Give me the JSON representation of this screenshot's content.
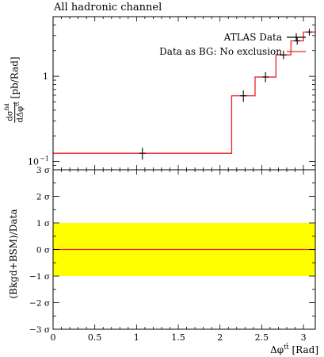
{
  "chart_data": [
    {
      "type": "line",
      "title": "All hadronic channel",
      "ylabel": "dσ^fid/dΔφ^tt̄ [pb/Rad]",
      "ylabel_parts": {
        "numerator": "dσ",
        "numerator_sup": "fid",
        "denominator": "dΔφ",
        "denominator_sup": "tt̄",
        "unit": "[pb/Rad]"
      },
      "yscale": "log",
      "ylim": [
        0.08,
        5.0
      ],
      "xlim": [
        0,
        3.1416
      ],
      "yticks": [
        {
          "value": 0.1,
          "label": "10",
          "exp": "−1"
        },
        {
          "value": 1,
          "label": "1",
          "exp": ""
        }
      ],
      "legend": {
        "placement": "top-right",
        "entries": [
          "ATLAS Data",
          "Data as BG: No exclusion"
        ]
      },
      "bin_edges": [
        0,
        2.14,
        2.42,
        2.67,
        2.85,
        3.0,
        3.1416
      ],
      "series": [
        {
          "name": "ATLAS Data",
          "color": "#000000",
          "x": [
            1.07,
            2.28,
            2.545,
            2.76,
            2.925,
            3.07
          ],
          "y": [
            0.125,
            0.59,
            0.98,
            1.78,
            2.6,
            3.3
          ],
          "yerr_low": [
            0.105,
            0.5,
            0.85,
            1.58,
            2.35,
            3.0
          ],
          "yerr_high": [
            0.145,
            0.68,
            1.12,
            2.0,
            2.85,
            3.6
          ]
        },
        {
          "name": "Data as BG: No exclusion",
          "color": "#ee2222",
          "y": [
            0.125,
            0.59,
            0.98,
            1.78,
            2.6,
            3.3
          ]
        }
      ]
    },
    {
      "type": "line",
      "ylabel": "(Bkgd+BSM)/Data",
      "xlabel": "Δφ^tt̄ [Rad]",
      "xlabel_parts": {
        "base": "Δφ",
        "sup": "tt̄",
        "unit": "[Rad]"
      },
      "ylim": [
        -3,
        3
      ],
      "xlim": [
        0,
        3.1416
      ],
      "yticks": [
        {
          "value": 3,
          "label": "3 σ"
        },
        {
          "value": 2,
          "label": "2 σ"
        },
        {
          "value": 1,
          "label": "1 σ"
        },
        {
          "value": 0,
          "label": "0 σ"
        },
        {
          "value": -1,
          "label": "−1 σ"
        },
        {
          "value": -2,
          "label": "−2 σ"
        },
        {
          "value": -3,
          "label": "−3 σ"
        }
      ],
      "xticks": [
        0,
        0.5,
        1,
        1.5,
        2,
        2.5,
        3
      ],
      "xtick_labels": [
        "0",
        "0.5",
        "1",
        "1.5",
        "2",
        "2.5",
        "3"
      ],
      "band": {
        "low": -1,
        "high": 1,
        "color": "#ffff00"
      },
      "series": [
        {
          "name": "",
          "color": "#ee2222",
          "y": 0
        }
      ]
    }
  ]
}
